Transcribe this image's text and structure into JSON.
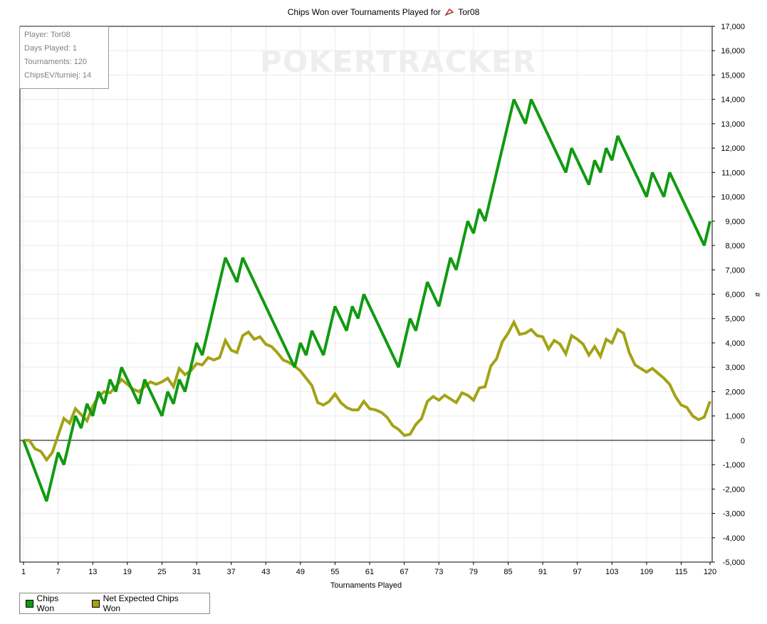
{
  "chart_data": {
    "type": "line",
    "title": "Chips Won over Tournaments Played for",
    "player_label": "Tor08",
    "xlabel": "Tournaments Played",
    "ylabel": "#",
    "xlim": [
      1,
      120
    ],
    "ylim": [
      -5000,
      17000
    ],
    "x_ticks": [
      1,
      7,
      13,
      19,
      25,
      31,
      37,
      43,
      49,
      55,
      61,
      67,
      73,
      79,
      85,
      91,
      97,
      103,
      109,
      115,
      120
    ],
    "y_ticks": [
      17000,
      16000,
      15000,
      14000,
      13000,
      12000,
      11000,
      10000,
      9000,
      8000,
      7000,
      6000,
      5000,
      4000,
      3000,
      2000,
      1000,
      0,
      -1000,
      -2000,
      -3000,
      -4000,
      -5000
    ],
    "y_tick_labels": [
      "17,000",
      "16,000",
      "15,000",
      "14,000",
      "13,000",
      "12,000",
      "11,000",
      "10,000",
      "9,000",
      "8,000",
      "7,000",
      "6,000",
      "5,000",
      "4,000",
      "3,000",
      "2,000",
      "1,000",
      "0",
      "-1,000",
      "-2,000",
      "-3,000",
      "-4,000",
      "-5,000"
    ],
    "grid": true,
    "legend_position": "bottom-left",
    "series": [
      {
        "name": "Chips Won",
        "color": "#119a11",
        "points": [
          [
            1,
            0
          ],
          [
            5,
            -2500
          ],
          [
            7,
            -500
          ],
          [
            8,
            -1000
          ],
          [
            10,
            1000
          ],
          [
            11,
            500
          ],
          [
            12,
            1500
          ],
          [
            13,
            1000
          ],
          [
            14,
            2000
          ],
          [
            15,
            1500
          ],
          [
            16,
            2500
          ],
          [
            17,
            2000
          ],
          [
            18,
            3000
          ],
          [
            21,
            1500
          ],
          [
            22,
            2500
          ],
          [
            25,
            1000
          ],
          [
            26,
            2000
          ],
          [
            27,
            1500
          ],
          [
            28,
            2500
          ],
          [
            29,
            2000
          ],
          [
            31,
            4000
          ],
          [
            32,
            3500
          ],
          [
            36,
            7500
          ],
          [
            38,
            6500
          ],
          [
            39,
            7500
          ],
          [
            48,
            3000
          ],
          [
            49,
            4000
          ],
          [
            50,
            3500
          ],
          [
            51,
            4500
          ],
          [
            53,
            3500
          ],
          [
            55,
            5500
          ],
          [
            57,
            4500
          ],
          [
            58,
            5500
          ],
          [
            59,
            5000
          ],
          [
            60,
            6000
          ],
          [
            66,
            3000
          ],
          [
            68,
            5000
          ],
          [
            69,
            4500
          ],
          [
            71,
            6500
          ],
          [
            73,
            5500
          ],
          [
            75,
            7500
          ],
          [
            76,
            7000
          ],
          [
            78,
            9000
          ],
          [
            79,
            8500
          ],
          [
            80,
            9500
          ],
          [
            81,
            9000
          ],
          [
            86,
            14000
          ],
          [
            88,
            13000
          ],
          [
            89,
            14000
          ],
          [
            95,
            11000
          ],
          [
            96,
            12000
          ],
          [
            99,
            10500
          ],
          [
            100,
            11500
          ],
          [
            101,
            11000
          ],
          [
            102,
            12000
          ],
          [
            103,
            11500
          ],
          [
            104,
            12500
          ],
          [
            109,
            10000
          ],
          [
            110,
            11000
          ],
          [
            112,
            10000
          ],
          [
            113,
            11000
          ],
          [
            119,
            8000
          ],
          [
            120,
            9000
          ]
        ]
      },
      {
        "name": "Net Expected Chips Won",
        "color": "#a3a316",
        "points": [
          [
            1,
            0
          ],
          [
            2,
            0
          ],
          [
            3,
            -350
          ],
          [
            4,
            -450
          ],
          [
            5,
            -800
          ],
          [
            6,
            -500
          ],
          [
            7,
            200
          ],
          [
            8,
            900
          ],
          [
            9,
            700
          ],
          [
            10,
            1300
          ],
          [
            11,
            1050
          ],
          [
            12,
            800
          ],
          [
            13,
            1400
          ],
          [
            14,
            1800
          ],
          [
            15,
            2000
          ],
          [
            16,
            1950
          ],
          [
            17,
            2200
          ],
          [
            18,
            2500
          ],
          [
            19,
            2300
          ],
          [
            20,
            2100
          ],
          [
            21,
            2000
          ],
          [
            22,
            2200
          ],
          [
            23,
            2400
          ],
          [
            24,
            2300
          ],
          [
            25,
            2400
          ],
          [
            26,
            2550
          ],
          [
            27,
            2200
          ],
          [
            28,
            2950
          ],
          [
            29,
            2700
          ],
          [
            30,
            2850
          ],
          [
            31,
            3150
          ],
          [
            32,
            3100
          ],
          [
            33,
            3400
          ],
          [
            34,
            3300
          ],
          [
            35,
            3400
          ],
          [
            36,
            4100
          ],
          [
            37,
            3700
          ],
          [
            38,
            3600
          ],
          [
            39,
            4300
          ],
          [
            40,
            4450
          ],
          [
            41,
            4150
          ],
          [
            42,
            4250
          ],
          [
            43,
            3950
          ],
          [
            44,
            3850
          ],
          [
            45,
            3600
          ],
          [
            46,
            3300
          ],
          [
            47,
            3200
          ],
          [
            48,
            3050
          ],
          [
            49,
            2850
          ],
          [
            50,
            2550
          ],
          [
            51,
            2250
          ],
          [
            52,
            1550
          ],
          [
            53,
            1450
          ],
          [
            54,
            1600
          ],
          [
            55,
            1900
          ],
          [
            56,
            1550
          ],
          [
            57,
            1350
          ],
          [
            58,
            1250
          ],
          [
            59,
            1250
          ],
          [
            60,
            1600
          ],
          [
            61,
            1300
          ],
          [
            62,
            1250
          ],
          [
            63,
            1150
          ],
          [
            64,
            950
          ],
          [
            65,
            600
          ],
          [
            66,
            450
          ],
          [
            67,
            200
          ],
          [
            68,
            250
          ],
          [
            69,
            650
          ],
          [
            70,
            900
          ],
          [
            71,
            1600
          ],
          [
            72,
            1800
          ],
          [
            73,
            1650
          ],
          [
            74,
            1850
          ],
          [
            75,
            1700
          ],
          [
            76,
            1550
          ],
          [
            77,
            1950
          ],
          [
            78,
            1850
          ],
          [
            79,
            1650
          ],
          [
            80,
            2150
          ],
          [
            81,
            2200
          ],
          [
            82,
            3050
          ],
          [
            83,
            3350
          ],
          [
            84,
            4050
          ],
          [
            85,
            4400
          ],
          [
            86,
            4850
          ],
          [
            87,
            4350
          ],
          [
            88,
            4400
          ],
          [
            89,
            4550
          ],
          [
            90,
            4300
          ],
          [
            91,
            4250
          ],
          [
            92,
            3750
          ],
          [
            93,
            4100
          ],
          [
            94,
            3950
          ],
          [
            95,
            3550
          ],
          [
            96,
            4300
          ],
          [
            97,
            4150
          ],
          [
            98,
            3950
          ],
          [
            99,
            3500
          ],
          [
            100,
            3850
          ],
          [
            101,
            3450
          ],
          [
            102,
            4150
          ],
          [
            103,
            4000
          ],
          [
            104,
            4550
          ],
          [
            105,
            4400
          ],
          [
            106,
            3600
          ],
          [
            107,
            3100
          ],
          [
            108,
            2950
          ],
          [
            109,
            2800
          ],
          [
            110,
            2950
          ],
          [
            111,
            2750
          ],
          [
            112,
            2550
          ],
          [
            113,
            2300
          ],
          [
            114,
            1800
          ],
          [
            115,
            1450
          ],
          [
            116,
            1350
          ],
          [
            117,
            1000
          ],
          [
            118,
            850
          ],
          [
            119,
            950
          ],
          [
            120,
            1600
          ]
        ]
      }
    ]
  },
  "info_box": {
    "player": "Player: Tor08",
    "days_played": "Days Played: 1",
    "tournaments": "Tournaments: 120",
    "chips_ev": "ChipsEV/turniej: 14"
  },
  "watermark": "POKERTRACKER",
  "legend": {
    "chips_won": "Chips Won",
    "net_expected": "Net Expected Chips Won"
  }
}
